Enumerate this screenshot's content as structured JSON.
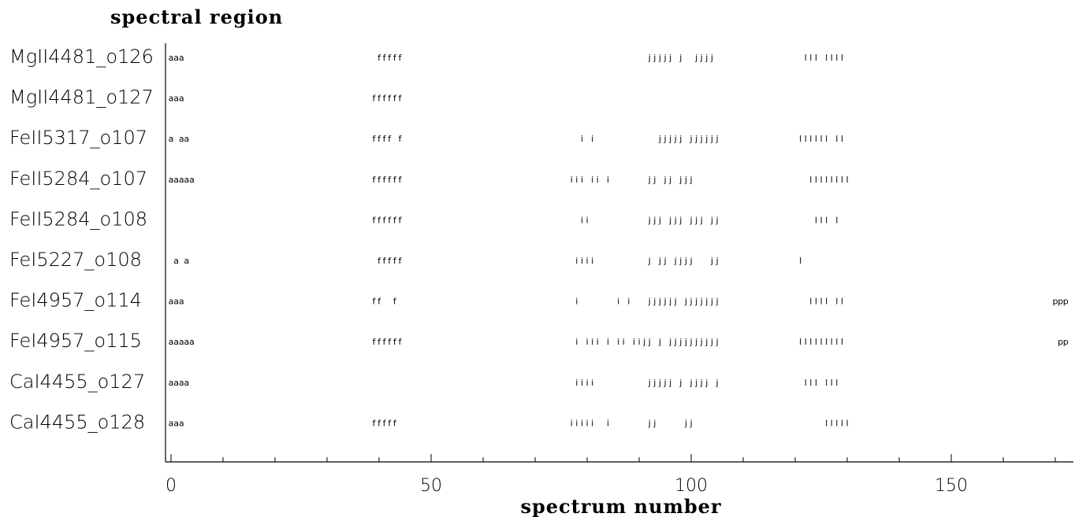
{
  "chart_data": {
    "type": "scatter",
    "title": "spectral region",
    "xlabel": "spectrum number",
    "ylabel": "",
    "xlim": [
      -1,
      173.5
    ],
    "x_ticks": [
      0,
      50,
      100,
      150
    ],
    "x_tick_labels": [
      "0",
      "50",
      "100",
      "150"
    ],
    "grid": false,
    "legend": "none",
    "regions": [
      {
        "name": "MgII4481_o126",
        "marks": [
          {
            "ch": "a",
            "x": [
              0,
              1,
              2
            ]
          },
          {
            "ch": "f",
            "x": [
              40,
              41,
              42,
              43,
              44
            ]
          },
          {
            "ch": "j",
            "x": [
              92,
              93,
              94,
              95,
              96,
              98,
              101,
              102,
              103,
              104
            ]
          },
          {
            "ch": "l",
            "x": [
              122,
              123,
              124,
              126,
              127,
              128,
              129
            ]
          }
        ]
      },
      {
        "name": "MgII4481_o127",
        "marks": [
          {
            "ch": "a",
            "x": [
              0,
              1,
              2
            ]
          },
          {
            "ch": "f",
            "x": [
              39,
              40,
              41,
              42,
              43,
              44
            ]
          }
        ]
      },
      {
        "name": "FeII5317_o107",
        "marks": [
          {
            "ch": "a",
            "x": [
              0,
              2,
              3
            ]
          },
          {
            "ch": "f",
            "x": [
              39,
              40,
              41,
              42,
              44
            ]
          },
          {
            "ch": "i",
            "x": [
              79,
              81
            ]
          },
          {
            "ch": "j",
            "x": [
              94,
              95,
              96,
              97,
              98,
              100,
              101,
              102,
              103,
              104,
              105
            ]
          },
          {
            "ch": "l",
            "x": [
              121,
              122,
              123,
              124,
              125,
              126,
              128,
              129
            ]
          }
        ]
      },
      {
        "name": "FeII5284_o107",
        "marks": [
          {
            "ch": "a",
            "x": [
              0,
              1,
              2,
              3,
              4
            ]
          },
          {
            "ch": "f",
            "x": [
              39,
              40,
              41,
              42,
              43,
              44
            ]
          },
          {
            "ch": "i",
            "x": [
              77,
              78,
              79,
              81,
              82,
              84
            ]
          },
          {
            "ch": "j",
            "x": [
              92,
              93,
              95,
              96,
              98,
              99,
              100
            ]
          },
          {
            "ch": "l",
            "x": [
              123,
              124,
              125,
              126,
              127,
              128,
              129,
              130
            ]
          }
        ]
      },
      {
        "name": "FeII5284_o108",
        "marks": [
          {
            "ch": "f",
            "x": [
              39,
              40,
              41,
              42,
              43,
              44
            ]
          },
          {
            "ch": "i",
            "x": [
              79,
              80
            ]
          },
          {
            "ch": "j",
            "x": [
              92,
              93,
              94,
              96,
              97,
              98,
              100,
              101,
              102,
              104,
              105
            ]
          },
          {
            "ch": "l",
            "x": [
              124,
              125,
              126,
              128
            ]
          }
        ]
      },
      {
        "name": "FeI5227_o108",
        "marks": [
          {
            "ch": "a",
            "x": [
              1,
              3
            ]
          },
          {
            "ch": "f",
            "x": [
              40,
              41,
              42,
              43,
              44
            ]
          },
          {
            "ch": "i",
            "x": [
              78,
              79,
              80,
              81
            ]
          },
          {
            "ch": "j",
            "x": [
              92,
              94,
              95,
              97,
              98,
              99,
              100,
              104,
              105
            ]
          },
          {
            "ch": "l",
            "x": [
              121
            ]
          }
        ]
      },
      {
        "name": "FeI4957_o114",
        "marks": [
          {
            "ch": "a",
            "x": [
              0,
              1,
              2
            ]
          },
          {
            "ch": "f",
            "x": [
              39,
              40,
              43
            ]
          },
          {
            "ch": "i",
            "x": [
              78,
              86,
              88
            ]
          },
          {
            "ch": "j",
            "x": [
              92,
              93,
              94,
              95,
              96,
              97,
              99,
              100,
              101,
              102,
              103,
              104,
              105
            ]
          },
          {
            "ch": "l",
            "x": [
              123,
              124,
              125,
              126,
              128,
              129
            ]
          },
          {
            "ch": "p",
            "x": [
              170,
              171,
              172
            ]
          }
        ]
      },
      {
        "name": "FeI4957_o115",
        "marks": [
          {
            "ch": "a",
            "x": [
              0,
              1,
              2,
              3,
              4
            ]
          },
          {
            "ch": "f",
            "x": [
              39,
              40,
              41,
              42,
              43,
              44
            ]
          },
          {
            "ch": "i",
            "x": [
              78,
              80,
              81,
              82,
              84,
              86,
              87,
              89,
              90
            ]
          },
          {
            "ch": "j",
            "x": [
              91,
              92,
              94,
              96,
              97,
              98,
              99,
              100,
              101,
              102,
              103,
              104,
              105
            ]
          },
          {
            "ch": "l",
            "x": [
              121,
              122,
              123,
              124,
              125,
              126,
              127,
              128,
              129
            ]
          },
          {
            "ch": "p",
            "x": [
              171,
              172
            ]
          }
        ]
      },
      {
        "name": "CaI4455_o127",
        "marks": [
          {
            "ch": "a",
            "x": [
              0,
              1,
              2,
              3
            ]
          },
          {
            "ch": "i",
            "x": [
              78,
              79,
              80,
              81
            ]
          },
          {
            "ch": "j",
            "x": [
              92,
              93,
              94,
              95,
              96,
              98,
              100,
              101,
              102,
              103,
              105
            ]
          },
          {
            "ch": "l",
            "x": [
              122,
              123,
              124,
              126,
              127,
              128
            ]
          }
        ]
      },
      {
        "name": "CaI4455_o128",
        "marks": [
          {
            "ch": "a",
            "x": [
              0,
              1,
              2
            ]
          },
          {
            "ch": "f",
            "x": [
              39,
              40,
              41,
              42,
              43
            ]
          },
          {
            "ch": "i",
            "x": [
              77,
              78,
              79,
              80,
              81,
              84
            ]
          },
          {
            "ch": "j",
            "x": [
              92,
              93,
              99,
              100
            ]
          },
          {
            "ch": "l",
            "x": [
              126,
              127,
              128,
              129,
              130
            ]
          }
        ]
      }
    ]
  }
}
